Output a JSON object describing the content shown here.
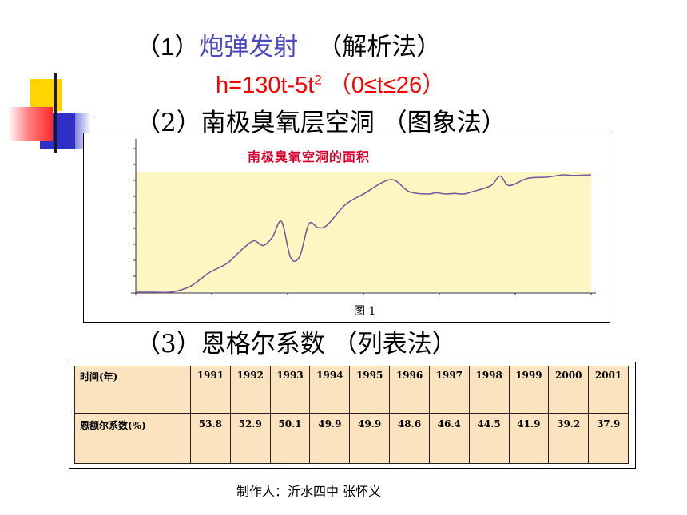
{
  "items": {
    "item1": {
      "num": "（1）",
      "label": "炮弹发射",
      "method": "（解析法）"
    },
    "formula": {
      "main": "h=130t-5t",
      "sup": "2",
      "range": " （0≤t≤26）"
    },
    "item2": {
      "num": "（2）",
      "label": "南极臭氧层空洞 ",
      "method": "（图象法）"
    },
    "item3": {
      "num": "（3）",
      "label": "恩格尔系数  ",
      "method": "（列表法）"
    }
  },
  "chart": {
    "title": "南极臭氧空洞的面积",
    "caption": "图  1",
    "plot_color": "#fcf6c2",
    "line_color": "#7a5a9a"
  },
  "chart_data": {
    "type": "line",
    "title": "南极臭氧空洞的面积",
    "x": [
      0,
      4,
      8,
      12,
      16,
      20,
      22,
      24,
      26,
      28,
      30,
      32,
      34,
      36,
      38,
      40,
      42,
      46,
      50,
      56,
      60,
      64,
      66,
      68,
      70,
      72,
      74,
      78,
      80,
      82,
      86,
      90,
      92,
      94,
      96,
      100
    ],
    "values": [
      0,
      0,
      0.02,
      0.5,
      1.6,
      2.4,
      3.1,
      3.8,
      4.3,
      3.9,
      4.6,
      5.9,
      2.9,
      3.0,
      5.7,
      5.4,
      5.6,
      7.3,
      8.2,
      9.4,
      8.4,
      8.2,
      8.3,
      8.2,
      8.25,
      8.2,
      8.4,
      8.9,
      9.7,
      8.9,
      9.5,
      9.6,
      9.7,
      9.8,
      9.75,
      9.8
    ],
    "ylim": [
      0,
      12
    ],
    "grid": false
  },
  "table": {
    "row1_label": "时间(年)",
    "years": [
      "1991",
      "1992",
      "1993",
      "1994",
      "1995",
      "1996",
      "1997",
      "1998",
      "1999",
      "2000",
      "2001"
    ],
    "row2_label": "恩额尔系数(%)",
    "coefficients": [
      "53.8",
      "52.9",
      "50.1",
      "49.9",
      "49.9",
      "48.6",
      "46.4",
      "44.5",
      "41.9",
      "39.2",
      "37.9"
    ],
    "background": "#fbe3bf"
  },
  "footer": "制作人：沂水四中  张怀义"
}
